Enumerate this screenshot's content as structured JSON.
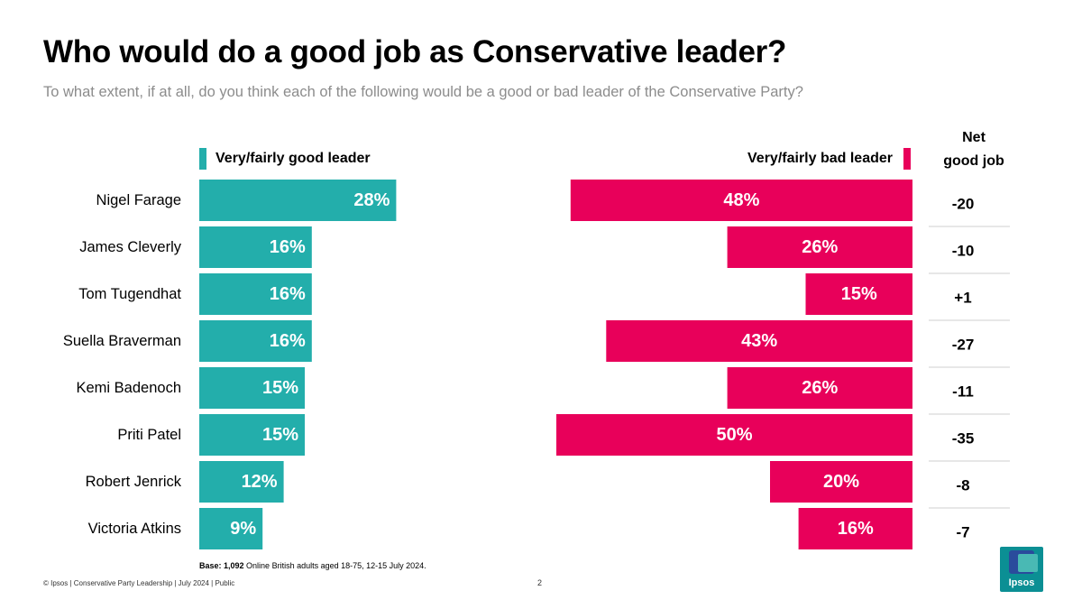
{
  "title": "Who would do a good job as Conservative leader?",
  "subtitle": "To what extent, if at all, do you think each of the following would be a good or bad leader of the Conservative Party?",
  "legend": {
    "good": "Very/fairly good leader",
    "bad": "Very/fairly bad leader",
    "net_line1": "Net",
    "net_line2": "good job"
  },
  "base_note": {
    "label": "Base: 1,092",
    "text": " Online British adults aged 18-75,  12-15 July 2024."
  },
  "footer": "© Ipsos | Conservative Party Leadership | July 2024 | Public",
  "page_number": "2",
  "logo_text": "Ipsos",
  "colors": {
    "good": "#23aeab",
    "bad": "#e8005a",
    "divider": "#cfcfcf"
  },
  "chart_data": {
    "type": "bar",
    "categories": [
      "Nigel Farage",
      "James Cleverly",
      "Tom Tugendhat",
      "Suella Braverman",
      "Kemi Badenoch",
      "Priti Patel",
      "Robert Jenrick",
      "Victoria Atkins"
    ],
    "series": [
      {
        "name": "Very/fairly good leader",
        "values": [
          28,
          16,
          16,
          16,
          15,
          15,
          12,
          9
        ],
        "labels": [
          "28%",
          "16%",
          "16%",
          "16%",
          "15%",
          "15%",
          "12%",
          "9%"
        ]
      },
      {
        "name": "Very/fairly bad leader",
        "values": [
          48,
          26,
          15,
          43,
          26,
          50,
          20,
          16
        ],
        "labels": [
          "48%",
          "26%",
          "15%",
          "43%",
          "26%",
          "50%",
          "20%",
          "16%"
        ]
      }
    ],
    "net": [
      "-20",
      "-10",
      "+1",
      "-27",
      "-11",
      "-35",
      "-8",
      "-7"
    ]
  }
}
